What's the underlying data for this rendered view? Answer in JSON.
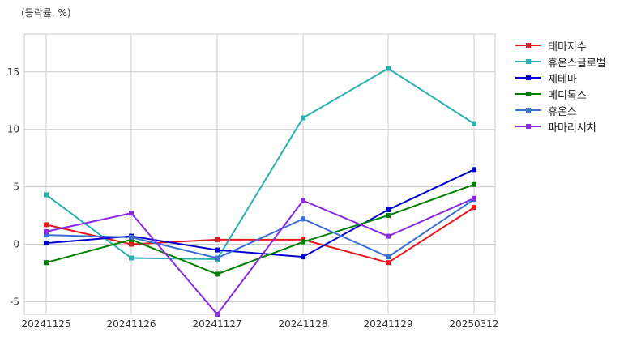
{
  "chart_data": {
    "type": "line",
    "ylabel": "(등락률, %)",
    "categories": [
      "20241125",
      "20241126",
      "20241127",
      "20241128",
      "20241129",
      "20250312"
    ],
    "ylim": [
      -6.1,
      18.3
    ],
    "yticks": [
      -5,
      0,
      5,
      10,
      15
    ],
    "grid": true,
    "legend_position": "right",
    "series": [
      {
        "name": "테마지수",
        "color": "#e41a1c",
        "values": [
          1.7,
          0.0,
          0.4,
          0.4,
          -1.6,
          3.2
        ]
      },
      {
        "name": "휴온스글로벌",
        "color": "#2ab0b0",
        "values": [
          4.3,
          -1.2,
          -1.3,
          11.0,
          15.3,
          10.5
        ]
      },
      {
        "name": "제테마",
        "color": "#0000cc",
        "values": [
          0.1,
          0.7,
          -0.5,
          -1.1,
          3.0,
          6.5
        ]
      },
      {
        "name": "메디톡스",
        "color": "#008000",
        "values": [
          -1.6,
          0.4,
          -2.6,
          0.2,
          2.5,
          5.2
        ]
      },
      {
        "name": "휴온스",
        "color": "#3a6fd8",
        "values": [
          0.8,
          0.6,
          -1.2,
          2.2,
          -1.1,
          3.9
        ]
      },
      {
        "name": "파마리서치",
        "color": "#8a2be2",
        "values": [
          1.1,
          2.7,
          -6.1,
          3.8,
          0.7,
          4.0
        ]
      }
    ]
  }
}
